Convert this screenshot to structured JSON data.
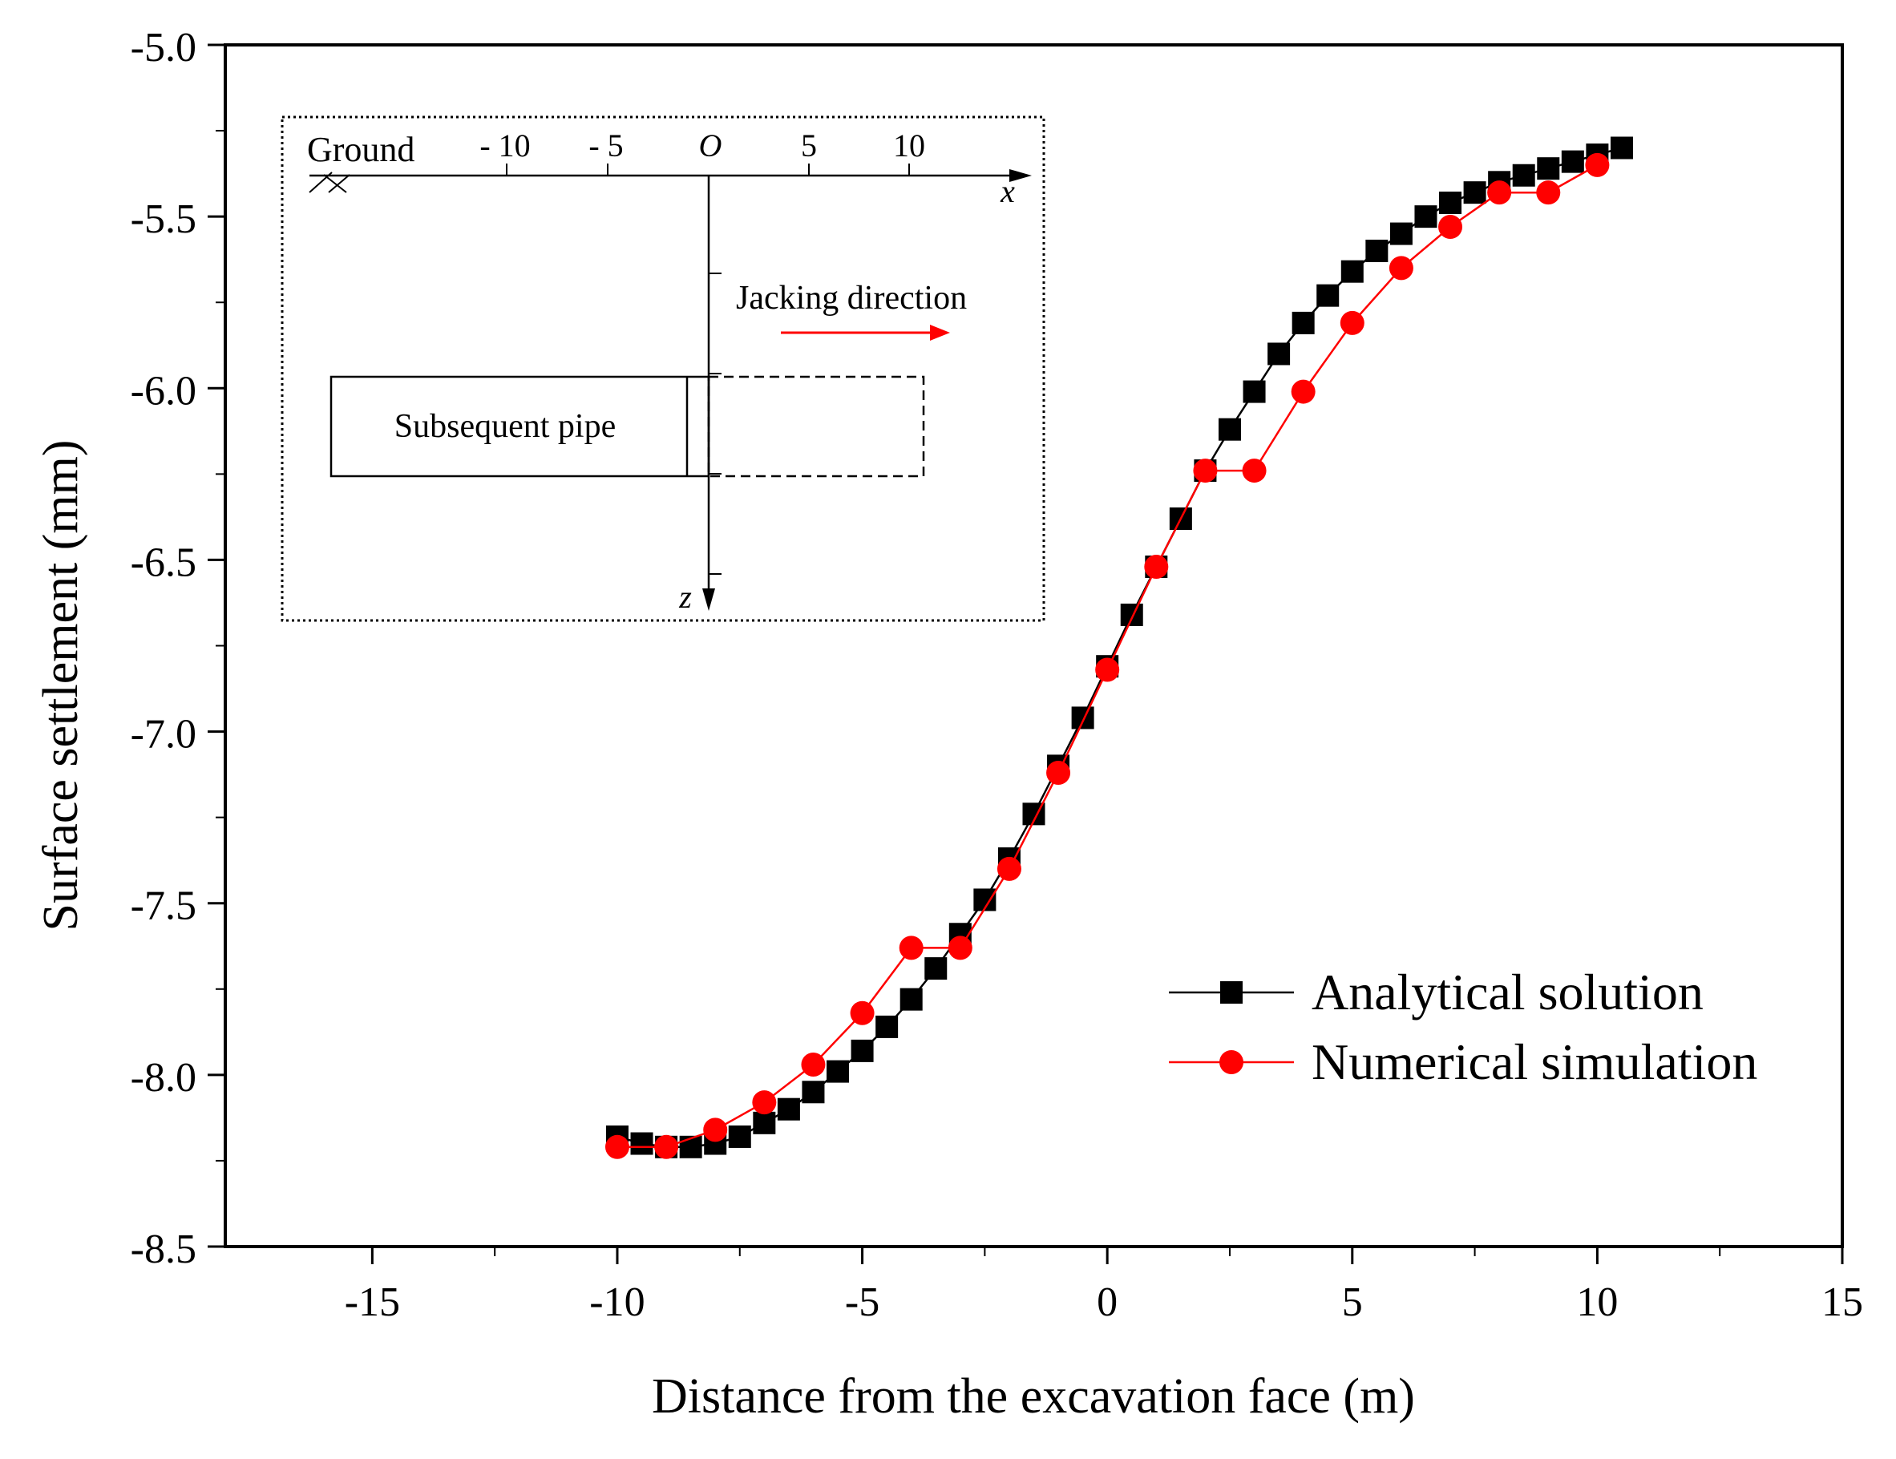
{
  "chart_data": {
    "type": "line",
    "title": "",
    "xlabel": "Distance from the excavation face (m)",
    "ylabel": "Surface settlement (mm)",
    "xlim": [
      -18,
      15
    ],
    "ylim": [
      -8.5,
      -5.0
    ],
    "x_ticks": [
      -15,
      -10,
      -5,
      0,
      5,
      10,
      15
    ],
    "x_tick_labels": [
      "-15",
      "-10",
      "-5",
      "0",
      "5",
      "10",
      "15"
    ],
    "y_ticks": [
      -8.5,
      -8.0,
      -7.5,
      -7.0,
      -6.5,
      -6.0,
      -5.5,
      -5.0
    ],
    "y_tick_labels": [
      "-8.5",
      "-8.0",
      "-7.5",
      "-7.0",
      "-6.5",
      "-6.0",
      "-5.5",
      "-5.0"
    ],
    "grid": false,
    "legend_position": "bottom-right",
    "series": [
      {
        "name": "Analytical solution",
        "color": "#000000",
        "marker": "square",
        "x": [
          -10,
          -9.5,
          -9,
          -8.5,
          -8,
          -7.5,
          -7,
          -6.5,
          -6,
          -5.5,
          -5,
          -4.5,
          -4,
          -3.5,
          -3,
          -2.5,
          -2,
          -1.5,
          -1,
          -0.5,
          0,
          0.5,
          1,
          1.5,
          2,
          2.5,
          3,
          3.5,
          4,
          4.5,
          5,
          5.5,
          6,
          6.5,
          7,
          7.5,
          8,
          8.5,
          9,
          9.5,
          10,
          10.5
        ],
        "y": [
          -8.18,
          -8.2,
          -8.21,
          -8.21,
          -8.2,
          -8.18,
          -8.14,
          -8.1,
          -8.05,
          -7.99,
          -7.93,
          -7.86,
          -7.78,
          -7.69,
          -7.59,
          -7.49,
          -7.37,
          -7.24,
          -7.1,
          -6.96,
          -6.81,
          -6.66,
          -6.52,
          -6.38,
          -6.24,
          -6.12,
          -6.01,
          -5.9,
          -5.81,
          -5.73,
          -5.66,
          -5.6,
          -5.55,
          -5.5,
          -5.46,
          -5.43,
          -5.4,
          -5.38,
          -5.36,
          -5.34,
          -5.32,
          -5.3
        ]
      },
      {
        "name": "Numerical simulation",
        "color": "#ff0000",
        "marker": "circle",
        "x": [
          -10,
          -9,
          -8,
          -7,
          -6,
          -5,
          -4,
          -3,
          -2,
          -1,
          0,
          1,
          2,
          3,
          4,
          5,
          6,
          7,
          8,
          9,
          10
        ],
        "y": [
          -8.21,
          -8.21,
          -8.16,
          -8.08,
          -7.97,
          -7.82,
          -7.63,
          -7.63,
          -7.4,
          -7.12,
          -6.82,
          -6.52,
          -6.24,
          -6.24,
          -6.01,
          -5.81,
          -5.65,
          -5.53,
          -5.43,
          -5.43,
          -5.35
        ]
      }
    ],
    "inset": {
      "ground_label": "Ground",
      "axis_ticks": [
        "- 10",
        "- 5",
        "O",
        "5",
        "10"
      ],
      "x_axis_label": "x",
      "z_axis_label": "z",
      "direction_label": "Jacking direction",
      "pipe_label": "Subsequent pipe",
      "arrow_color": "#ff0000"
    }
  }
}
